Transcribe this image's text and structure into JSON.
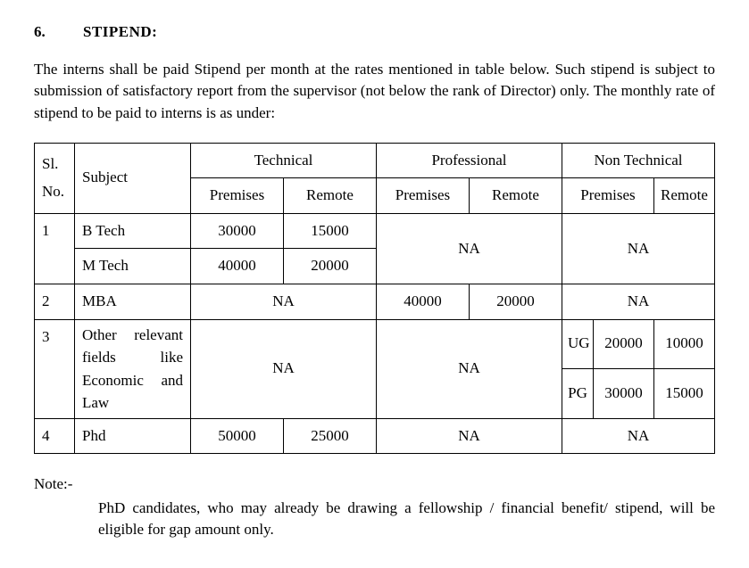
{
  "heading": {
    "number": "6.",
    "title": "STIPEND:"
  },
  "intro": "The interns shall be paid Stipend per month at the rates mentioned in table below.  Such stipend is subject to submission of satisfactory report from the supervisor (not below the rank of Director) only.  The monthly rate of stipend to be paid to interns is as under:",
  "table": {
    "col_headers": {
      "sl": "Sl. No.",
      "subject": "Subject",
      "tech": "Technical",
      "prof": "Professional",
      "nontech": "Non  Technical"
    },
    "sub_headers": {
      "premises": "Premises",
      "remote": "Remote"
    },
    "na": "NA",
    "rows_13": {
      "sl": "1",
      "btech": {
        "subject": "B Tech",
        "tech_premises": "30000",
        "tech_remote": "15000"
      },
      "mtech": {
        "subject": "M Tech",
        "tech_premises": "40000",
        "tech_remote": "20000"
      },
      "tech_na": "NA",
      "nontech_na": "NA"
    },
    "row_mba": {
      "sl": "2",
      "subject": "MBA",
      "tech": "NA",
      "prof_premises": "40000",
      "prof_remote": "20000",
      "nontech": "NA"
    },
    "row_other": {
      "sl": "3",
      "subject": "Other relevant fields like Economic and Law",
      "tech": "NA",
      "prof": "NA",
      "ug": {
        "label": "UG",
        "premises": "20000",
        "remote": "10000"
      },
      "pg": {
        "label": "PG",
        "premises": "30000",
        "remote": "15000"
      }
    },
    "row_phd": {
      "sl": "4",
      "subject": "Phd",
      "tech_premises": "50000",
      "tech_remote": "25000",
      "prof": "NA",
      "nontech": "NA"
    }
  },
  "note": {
    "label": "Note:-",
    "text": "PhD candidates, who may already be drawing a fellowship / financial benefit/ stipend, will be eligible for gap amount only."
  }
}
